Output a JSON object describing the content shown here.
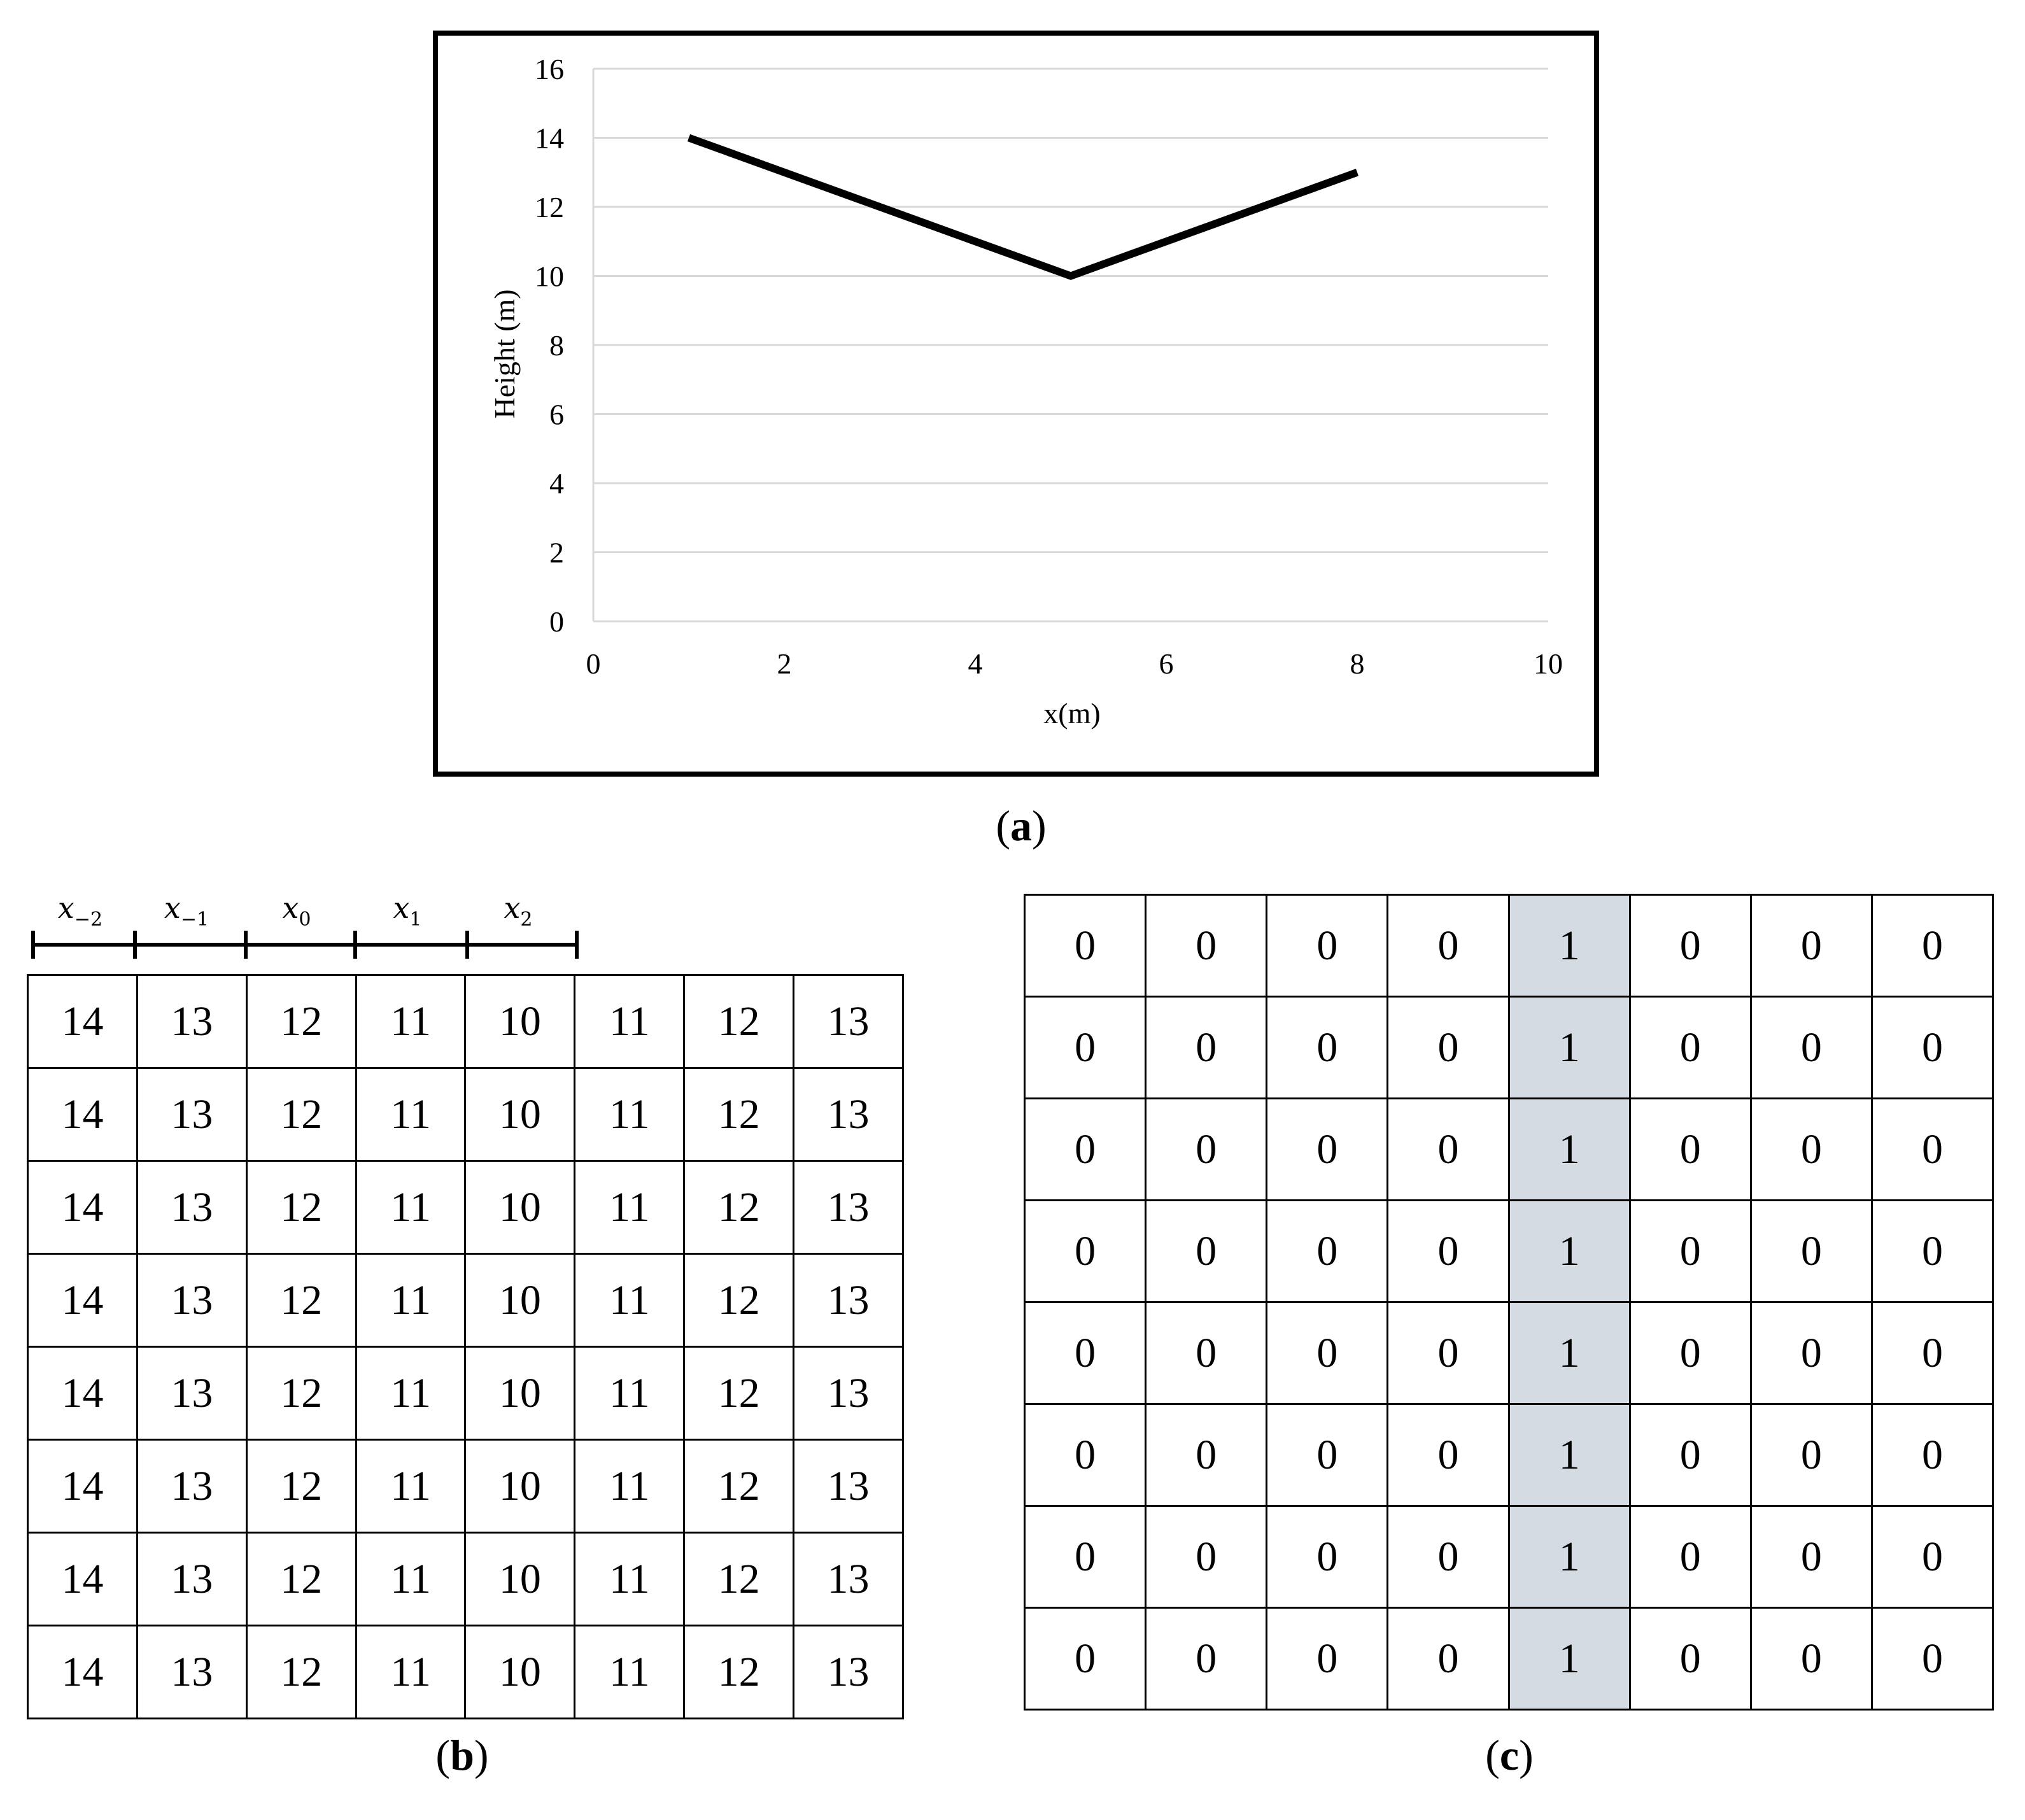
{
  "chart_data": {
    "type": "line",
    "xlabel": "x(m)",
    "ylabel": "Height (m)",
    "xlim": [
      0,
      10
    ],
    "ylim": [
      0,
      16
    ],
    "x_ticks": [
      "0",
      "2",
      "4",
      "6",
      "8",
      "10"
    ],
    "y_ticks": [
      "0",
      "2",
      "4",
      "6",
      "8",
      "10",
      "12",
      "14",
      "16"
    ],
    "grid": "horizontal",
    "series": [
      {
        "x": [
          1,
          5,
          8
        ],
        "y": [
          14,
          10,
          13
        ],
        "color": "#000000"
      }
    ]
  },
  "panel_labels": {
    "a": "a",
    "b": "b",
    "c": "c"
  },
  "ruler": {
    "labels": [
      {
        "base": "x",
        "sub": "−2"
      },
      {
        "base": "x",
        "sub": "−1"
      },
      {
        "base": "x",
        "sub": "0"
      },
      {
        "base": "x",
        "sub": "1"
      },
      {
        "base": "x",
        "sub": "2"
      }
    ]
  },
  "grid_b": [
    [
      "14",
      "13",
      "12",
      "11",
      "10",
      "11",
      "12",
      "13"
    ],
    [
      "14",
      "13",
      "12",
      "11",
      "10",
      "11",
      "12",
      "13"
    ],
    [
      "14",
      "13",
      "12",
      "11",
      "10",
      "11",
      "12",
      "13"
    ],
    [
      "14",
      "13",
      "12",
      "11",
      "10",
      "11",
      "12",
      "13"
    ],
    [
      "14",
      "13",
      "12",
      "11",
      "10",
      "11",
      "12",
      "13"
    ],
    [
      "14",
      "13",
      "12",
      "11",
      "10",
      "11",
      "12",
      "13"
    ],
    [
      "14",
      "13",
      "12",
      "11",
      "10",
      "11",
      "12",
      "13"
    ],
    [
      "14",
      "13",
      "12",
      "11",
      "10",
      "11",
      "12",
      "13"
    ]
  ],
  "grid_c": [
    [
      "0",
      "0",
      "0",
      "0",
      "1",
      "0",
      "0",
      "0"
    ],
    [
      "0",
      "0",
      "0",
      "0",
      "1",
      "0",
      "0",
      "0"
    ],
    [
      "0",
      "0",
      "0",
      "0",
      "1",
      "0",
      "0",
      "0"
    ],
    [
      "0",
      "0",
      "0",
      "0",
      "1",
      "0",
      "0",
      "0"
    ],
    [
      "0",
      "0",
      "0",
      "0",
      "1",
      "0",
      "0",
      "0"
    ],
    [
      "0",
      "0",
      "0",
      "0",
      "1",
      "0",
      "0",
      "0"
    ],
    [
      "0",
      "0",
      "0",
      "0",
      "1",
      "0",
      "0",
      "0"
    ],
    [
      "0",
      "0",
      "0",
      "0",
      "1",
      "0",
      "0",
      "0"
    ]
  ],
  "grid_c_highlight_column": 4,
  "grid_c_highlight_color": "#d5dbe3"
}
